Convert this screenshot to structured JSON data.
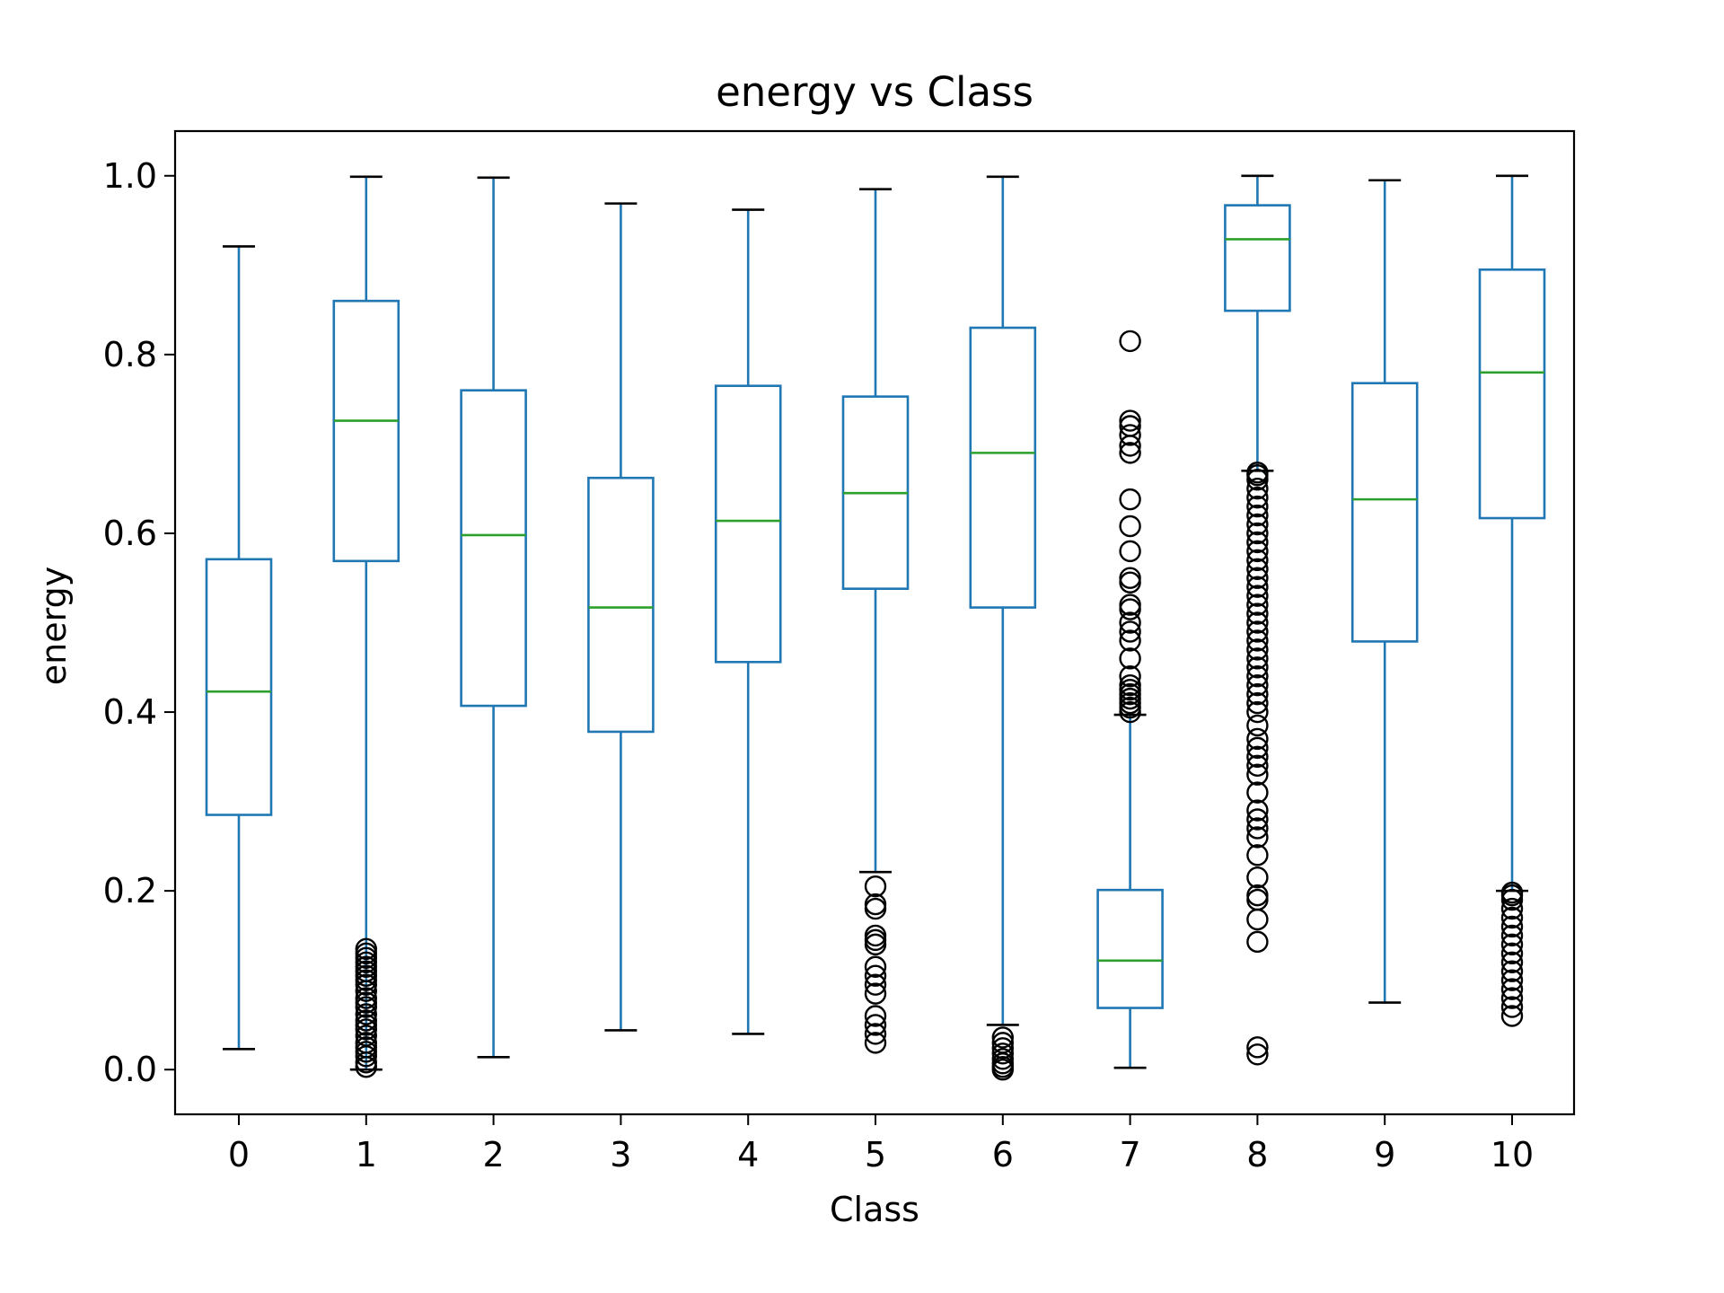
{
  "chart_data": {
    "type": "box",
    "title": "energy vs Class",
    "xlabel": "Class",
    "ylabel": "energy",
    "ylim": [
      -0.05,
      1.05
    ],
    "yticks": [
      "0.0",
      "0.2",
      "0.4",
      "0.6",
      "0.8",
      "1.0"
    ],
    "categories": [
      "0",
      "1",
      "2",
      "3",
      "4",
      "5",
      "6",
      "7",
      "8",
      "9",
      "10"
    ],
    "grid": false,
    "colors": {
      "box": "#1f77b4",
      "median": "#2ca02c",
      "whisker_cap": "#000000",
      "flier": "#000000"
    },
    "boxes": [
      {
        "label": "0",
        "whislo": 0.023,
        "q1": 0.285,
        "median": 0.423,
        "q3": 0.571,
        "whishi": 0.921,
        "fliers": []
      },
      {
        "label": "1",
        "whislo": 0.0,
        "q1": 0.569,
        "median": 0.726,
        "q3": 0.86,
        "whishi": 0.999,
        "fliers": [
          0.003,
          0.008,
          0.015,
          0.02,
          0.025,
          0.03,
          0.038,
          0.045,
          0.05,
          0.055,
          0.062,
          0.07,
          0.075,
          0.08,
          0.088,
          0.095,
          0.1,
          0.105,
          0.11,
          0.115,
          0.12,
          0.125,
          0.13,
          0.135
        ]
      },
      {
        "label": "2",
        "whislo": 0.014,
        "q1": 0.407,
        "median": 0.598,
        "q3": 0.76,
        "whishi": 0.998,
        "fliers": []
      },
      {
        "label": "3",
        "whislo": 0.044,
        "q1": 0.378,
        "median": 0.517,
        "q3": 0.662,
        "whishi": 0.969,
        "fliers": []
      },
      {
        "label": "4",
        "whislo": 0.04,
        "q1": 0.456,
        "median": 0.614,
        "q3": 0.765,
        "whishi": 0.962,
        "fliers": []
      },
      {
        "label": "5",
        "whislo": 0.221,
        "q1": 0.538,
        "median": 0.645,
        "q3": 0.753,
        "whishi": 0.985,
        "fliers": [
          0.03,
          0.04,
          0.05,
          0.06,
          0.085,
          0.095,
          0.105,
          0.115,
          0.14,
          0.145,
          0.15,
          0.18,
          0.185,
          0.205
        ]
      },
      {
        "label": "6",
        "whislo": 0.05,
        "q1": 0.517,
        "median": 0.69,
        "q3": 0.83,
        "whishi": 0.999,
        "fliers": [
          0.0,
          0.003,
          0.007,
          0.012,
          0.018,
          0.024,
          0.03,
          0.036
        ]
      },
      {
        "label": "7",
        "whislo": 0.002,
        "q1": 0.069,
        "median": 0.122,
        "q3": 0.201,
        "whishi": 0.397,
        "fliers": [
          0.4,
          0.405,
          0.41,
          0.415,
          0.42,
          0.425,
          0.43,
          0.44,
          0.46,
          0.48,
          0.49,
          0.5,
          0.515,
          0.52,
          0.545,
          0.55,
          0.58,
          0.608,
          0.638,
          0.69,
          0.698,
          0.71,
          0.72,
          0.726,
          0.815
        ]
      },
      {
        "label": "8",
        "whislo": 0.67,
        "q1": 0.849,
        "median": 0.929,
        "q3": 0.967,
        "whishi": 1.0,
        "fliers": [
          0.017,
          0.025,
          0.143,
          0.168,
          0.19,
          0.195,
          0.215,
          0.24,
          0.26,
          0.27,
          0.28,
          0.29,
          0.31,
          0.33,
          0.34,
          0.35,
          0.36,
          0.37,
          0.385,
          0.4,
          0.41,
          0.42,
          0.43,
          0.44,
          0.45,
          0.46,
          0.47,
          0.48,
          0.49,
          0.5,
          0.51,
          0.52,
          0.53,
          0.54,
          0.55,
          0.56,
          0.57,
          0.58,
          0.59,
          0.6,
          0.61,
          0.62,
          0.63,
          0.64,
          0.65,
          0.66,
          0.665,
          0.668
        ]
      },
      {
        "label": "9",
        "whislo": 0.075,
        "q1": 0.479,
        "median": 0.638,
        "q3": 0.768,
        "whishi": 0.995,
        "fliers": []
      },
      {
        "label": "10",
        "whislo": 0.2,
        "q1": 0.617,
        "median": 0.78,
        "q3": 0.895,
        "whishi": 1.0,
        "fliers": [
          0.06,
          0.07,
          0.08,
          0.09,
          0.1,
          0.11,
          0.12,
          0.13,
          0.14,
          0.15,
          0.16,
          0.17,
          0.18,
          0.19,
          0.195,
          0.198
        ]
      }
    ]
  }
}
